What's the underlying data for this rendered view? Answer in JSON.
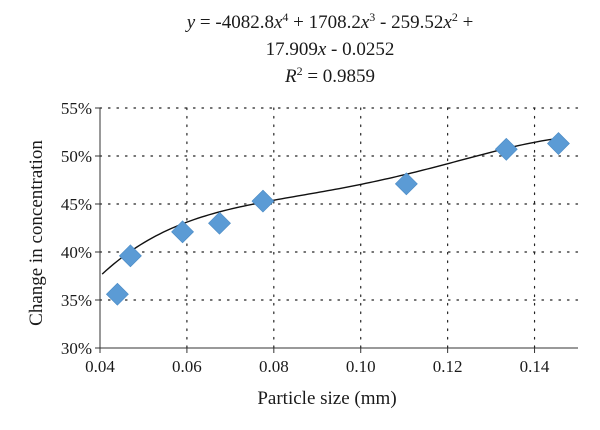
{
  "chart_data": {
    "type": "scatter",
    "title": "",
    "xlabel": "Particle size (mm)",
    "ylabel": "Change in concentration",
    "xlim": [
      0.04,
      0.15
    ],
    "ylim": [
      0.3,
      0.55
    ],
    "x_ticks": [
      0.04,
      0.06,
      0.08,
      0.1,
      0.12,
      0.14
    ],
    "x_tick_labels": [
      "0.04",
      "0.06",
      "0.08",
      "0.10",
      "0.12",
      "0.14"
    ],
    "y_ticks": [
      0.3,
      0.35,
      0.4,
      0.45,
      0.5,
      0.55
    ],
    "y_tick_labels": [
      "30%",
      "35%",
      "40%",
      "45%",
      "50%",
      "55%"
    ],
    "grid": true,
    "marker_color": "#5b9bd5",
    "trend_color": "#111111",
    "series": [
      {
        "marker": "diamond",
        "x": [
          0.044,
          0.047,
          0.059,
          0.0675,
          0.0775,
          0.1105,
          0.1335,
          0.1455
        ],
        "y": [
          0.356,
          0.396,
          0.421,
          0.43,
          0.453,
          0.471,
          0.507,
          0.513
        ]
      }
    ],
    "trendline": {
      "type": "polynomial",
      "order": 4,
      "coefficients": [
        -4082.8,
        1708.2,
        -259.52,
        17.909,
        -0.0252
      ],
      "x_range": [
        0.0405,
        0.146
      ],
      "equation": {
        "line1": {
          "y": "y",
          "eq_c4": " = -4082.8",
          "x1": "x",
          "p4": "4",
          "c3": " + 1708.2",
          "x2": "x",
          "p3": "3",
          "c2": " - 259.52",
          "x3": "x",
          "p2": "2",
          "tail": " +"
        },
        "line2": {
          "c1": "17.909",
          "x4": "x",
          "c0": " - 0.0252"
        },
        "line3": {
          "r": "R",
          "rp": "2",
          "rval": " = 0.9859"
        }
      }
    }
  }
}
